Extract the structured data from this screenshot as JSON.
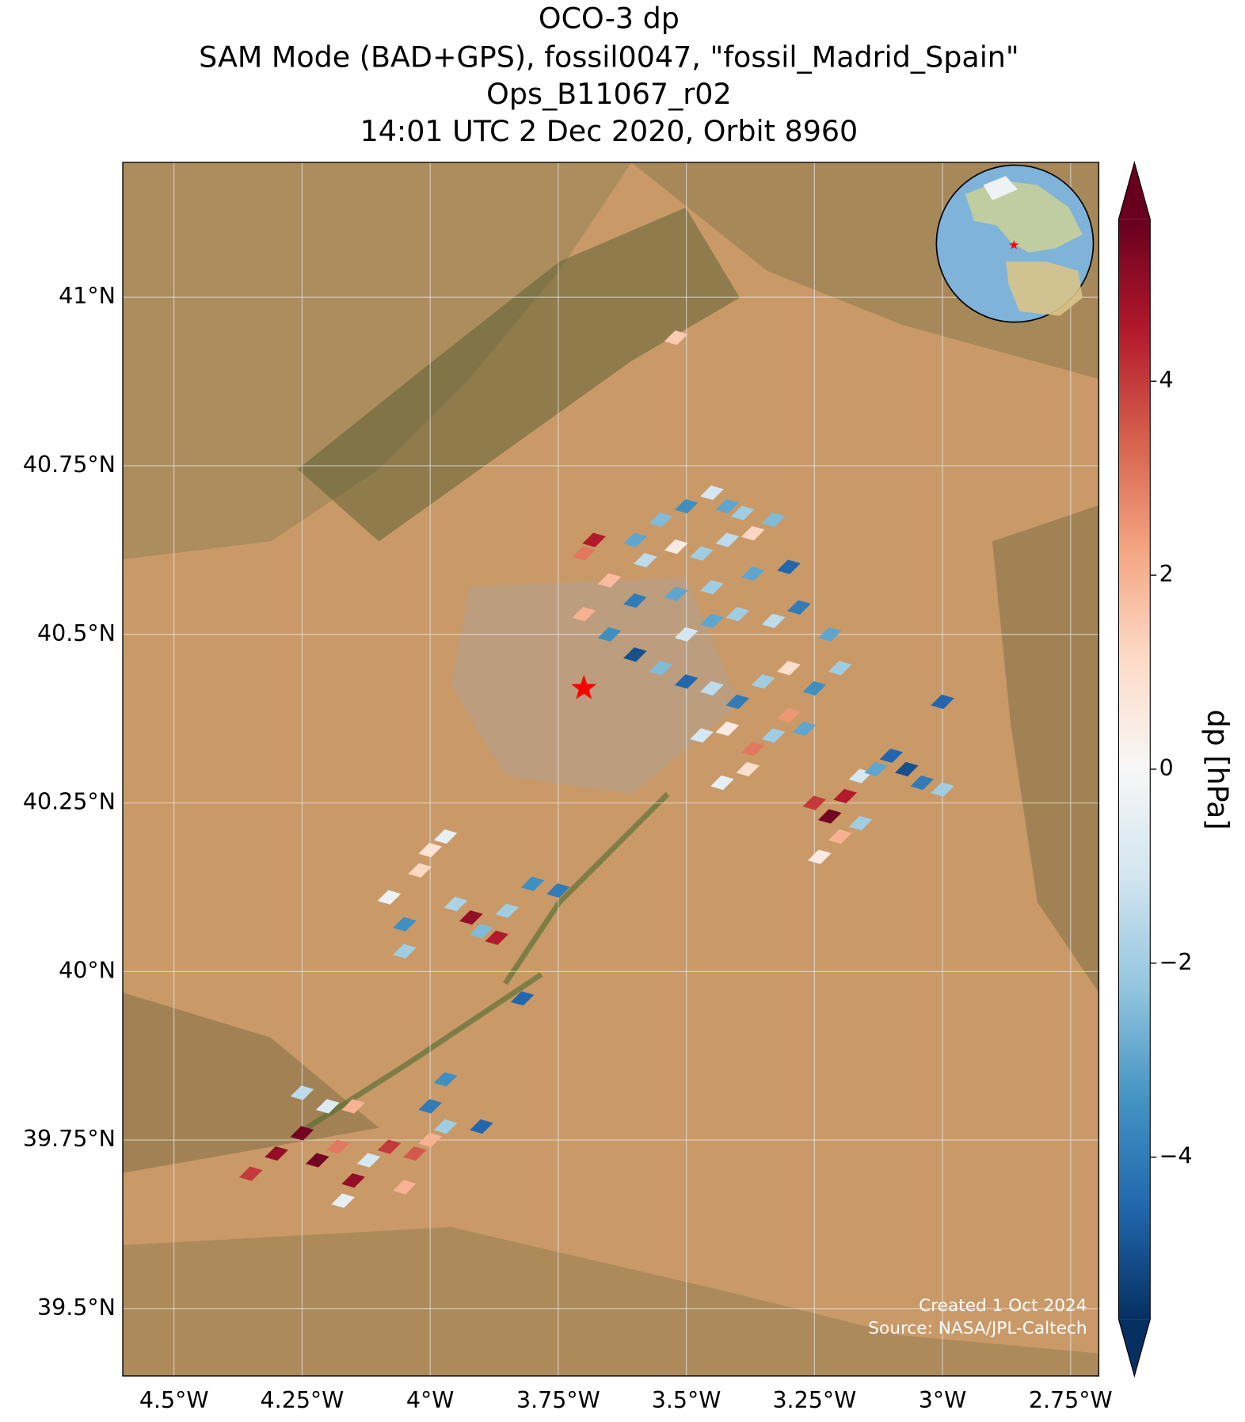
{
  "chart_data": {
    "type": "map",
    "title": [
      "OCO-3 dp",
      "SAM Mode (BAD+GPS), fossil0047, \"fossil_Madrid_Spain\"",
      "Ops_B11067_r02",
      "14:01 UTC 2 Dec 2020, Orbit 8960"
    ],
    "xlim": [
      -4.6,
      -2.695
    ],
    "ylim": [
      39.4,
      41.2
    ],
    "xticks": [
      {
        "value": -4.5,
        "label": "4.5°W"
      },
      {
        "value": -4.25,
        "label": "4.25°W"
      },
      {
        "value": -4,
        "label": "4°W"
      },
      {
        "value": -3.75,
        "label": "3.75°W"
      },
      {
        "value": -3.5,
        "label": "3.5°W"
      },
      {
        "value": -3.25,
        "label": "3.25°W"
      },
      {
        "value": -3,
        "label": "3°W"
      },
      {
        "value": -2.75,
        "label": "2.75°W"
      }
    ],
    "yticks": [
      {
        "value": 41,
        "label": "41°N"
      },
      {
        "value": 40.75,
        "label": "40.75°N"
      },
      {
        "value": 40.5,
        "label": "40.5°N"
      },
      {
        "value": 40.25,
        "label": "40.25°N"
      },
      {
        "value": 40,
        "label": "40°N"
      },
      {
        "value": 39.75,
        "label": "39.75°N"
      },
      {
        "value": 39.5,
        "label": "39.5°N"
      }
    ],
    "grid": true,
    "colorbar": {
      "label": "dp [hPa]",
      "lim": [
        -5.67,
        5.67
      ],
      "ticks": [
        {
          "value": -4,
          "label": "−4"
        },
        {
          "value": -2,
          "label": "−2"
        },
        0,
        2,
        4
      ],
      "colormap": [
        "#053061",
        "#2166ac",
        "#4393c3",
        "#92c5de",
        "#d1e5f0",
        "#f7f7f7",
        "#fddbc7",
        "#f4a582",
        "#d6604d",
        "#b2182b",
        "#67001f"
      ]
    },
    "target": {
      "lon": -3.7,
      "lat": 40.42,
      "color": "#ff0000"
    },
    "credits": [
      "Created 1 Oct 2024",
      "Source: NASA/JPL-Caltech"
    ],
    "cells": [
      [
        -3.45,
        40.71,
        -1
      ],
      [
        -3.42,
        40.69,
        -3
      ],
      [
        -3.39,
        40.68,
        -2
      ],
      [
        -3.5,
        40.69,
        -3.5
      ],
      [
        -3.55,
        40.67,
        -2.5
      ],
      [
        -3.6,
        40.64,
        -3
      ],
      [
        -3.58,
        40.61,
        -1.5
      ],
      [
        -3.52,
        40.63,
        0.5
      ],
      [
        -3.47,
        40.62,
        -2
      ],
      [
        -3.42,
        40.64,
        -1.5
      ],
      [
        -3.37,
        40.65,
        1.2
      ],
      [
        -3.33,
        40.67,
        -2.5
      ],
      [
        -3.3,
        40.6,
        -4.5
      ],
      [
        -3.37,
        40.59,
        -3
      ],
      [
        -3.45,
        40.57,
        -2
      ],
      [
        -3.52,
        40.56,
        -3
      ],
      [
        -3.6,
        40.55,
        -4
      ],
      [
        -3.65,
        40.5,
        -3.5
      ],
      [
        -3.6,
        40.47,
        -5
      ],
      [
        -3.55,
        40.45,
        -2.5
      ],
      [
        -3.5,
        40.5,
        -1
      ],
      [
        -3.45,
        40.52,
        -3
      ],
      [
        -3.4,
        40.53,
        -2
      ],
      [
        -3.33,
        40.52,
        -1.5
      ],
      [
        -3.28,
        40.54,
        -4
      ],
      [
        -3.22,
        40.5,
        -3
      ],
      [
        -3.2,
        40.45,
        -2
      ],
      [
        -3.25,
        40.42,
        -3.5
      ],
      [
        -3.3,
        40.45,
        1
      ],
      [
        -3.35,
        40.43,
        -2
      ],
      [
        -3.4,
        40.4,
        -4
      ],
      [
        -3.45,
        40.42,
        -1.5
      ],
      [
        -3.5,
        40.43,
        -4.5
      ],
      [
        -3.42,
        40.36,
        0.5
      ],
      [
        -3.37,
        40.33,
        3
      ],
      [
        -3.33,
        40.35,
        -2
      ],
      [
        -3.38,
        40.3,
        1
      ],
      [
        -3.43,
        40.28,
        -0.5
      ],
      [
        -3.3,
        40.38,
        2.5
      ],
      [
        -3.27,
        40.36,
        -3
      ],
      [
        -3.47,
        40.35,
        -1
      ],
      [
        -3.65,
        40.58,
        1.8
      ],
      [
        -3.7,
        40.53,
        2
      ],
      [
        -3.68,
        40.64,
        4.5
      ],
      [
        -3.7,
        40.62,
        3
      ],
      [
        -3.25,
        40.25,
        4
      ],
      [
        -3.22,
        40.23,
        5.5
      ],
      [
        -3.19,
        40.26,
        4.5
      ],
      [
        -3.16,
        40.29,
        -1
      ],
      [
        -3.2,
        40.2,
        2
      ],
      [
        -3.24,
        40.17,
        0.5
      ],
      [
        -3.13,
        40.3,
        -3
      ],
      [
        -3.1,
        40.32,
        -4.5
      ],
      [
        -3.07,
        40.3,
        -5
      ],
      [
        -3.04,
        40.28,
        -4
      ],
      [
        -3,
        40.27,
        -2
      ],
      [
        -3,
        40.4,
        -4.5
      ],
      [
        -3.16,
        40.22,
        -2
      ],
      [
        -4,
        40.18,
        0.8
      ],
      [
        -3.97,
        40.2,
        -0.5
      ],
      [
        -4.02,
        40.15,
        1.2
      ],
      [
        -4.08,
        40.11,
        -0.3
      ],
      [
        -3.95,
        40.1,
        -1.8
      ],
      [
        -3.92,
        40.08,
        5
      ],
      [
        -3.9,
        40.06,
        -2.5
      ],
      [
        -3.87,
        40.05,
        4.5
      ],
      [
        -3.85,
        40.09,
        -2
      ],
      [
        -3.8,
        40.13,
        -3.5
      ],
      [
        -3.75,
        40.12,
        -4
      ],
      [
        -4.05,
        40.07,
        -3.5
      ],
      [
        -4.05,
        40.03,
        -2
      ],
      [
        -4.35,
        39.7,
        4
      ],
      [
        -4.3,
        39.73,
        5
      ],
      [
        -4.25,
        39.76,
        5.5
      ],
      [
        -4.22,
        39.72,
        5.5
      ],
      [
        -4.18,
        39.74,
        3
      ],
      [
        -4.15,
        39.69,
        5
      ],
      [
        -4.12,
        39.72,
        -1
      ],
      [
        -4.08,
        39.74,
        4
      ],
      [
        -4.03,
        39.73,
        3.5
      ],
      [
        -4,
        39.75,
        2
      ],
      [
        -3.97,
        39.77,
        -2
      ],
      [
        -4.17,
        39.66,
        -0.5
      ],
      [
        -4.05,
        39.68,
        2
      ],
      [
        -4,
        39.8,
        -4
      ],
      [
        -3.97,
        39.84,
        -3.5
      ],
      [
        -4.2,
        39.8,
        -0.8
      ],
      [
        -4.25,
        39.82,
        -1.5
      ],
      [
        -4.15,
        39.8,
        2
      ],
      [
        -3.9,
        39.77,
        -4.5
      ],
      [
        -3.82,
        39.96,
        -4.5
      ],
      [
        -3.52,
        40.94,
        1.5
      ]
    ]
  }
}
